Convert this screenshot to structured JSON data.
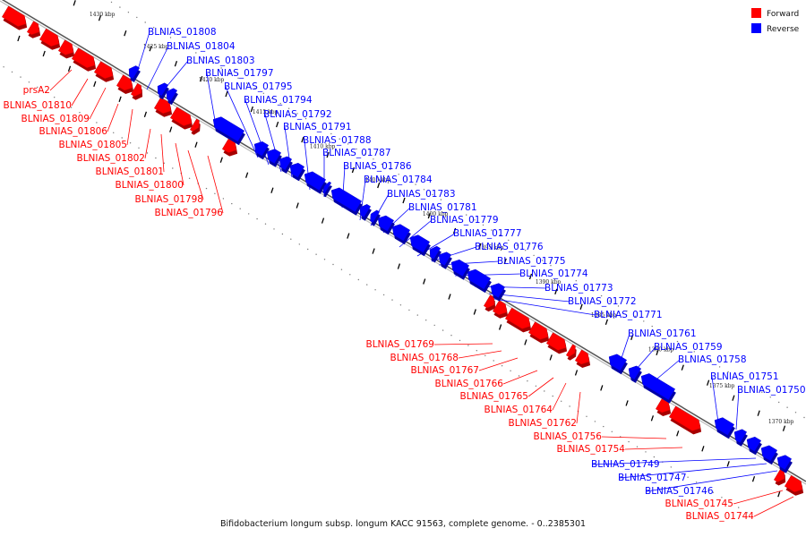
{
  "caption": "Bifidobacterium longum subsp. longum KACC 91563, complete genome. - 0..2385301",
  "legend": [
    {
      "label": "Forward",
      "color": "#ff0000"
    },
    {
      "label": "Reverse",
      "color": "#0000ff"
    }
  ],
  "colors": {
    "forward": "#ff0000",
    "reverse": "#0000ff",
    "axis": "#888888"
  },
  "ticks": [
    "1430 kbp",
    "1425 kbp",
    "1420 kbp",
    "1415 kbp",
    "1410 kbp",
    "1405 kbp",
    "1400 kbp",
    "1395 kbp",
    "1390 kbp",
    "1385 kbp",
    "1380 kbp",
    "1375 kbp",
    "1370 kbp"
  ],
  "forward_labels": [
    "prsA2",
    "BLNIAS_01810",
    "BLNIAS_01809",
    "BLNIAS_01806",
    "BLNIAS_01805",
    "BLNIAS_01802",
    "BLNIAS_01801",
    "BLNIAS_01800",
    "BLNIAS_01798",
    "BLNIAS_01796",
    "BLNIAS_01769",
    "BLNIAS_01768",
    "BLNIAS_01767",
    "BLNIAS_01766",
    "BLNIAS_01765",
    "BLNIAS_01764",
    "BLNIAS_01762",
    "BLNIAS_01756",
    "BLNIAS_01754",
    "BLNIAS_01745",
    "BLNIAS_01744"
  ],
  "reverse_labels": [
    "BLNIAS_01808",
    "BLNIAS_01804",
    "BLNIAS_01803",
    "BLNIAS_01797",
    "BLNIAS_01795",
    "BLNIAS_01794",
    "BLNIAS_01792",
    "BLNIAS_01791",
    "BLNIAS_01788",
    "BLNIAS_01787",
    "BLNIAS_01786",
    "BLNIAS_01784",
    "BLNIAS_01783",
    "BLNIAS_01781",
    "BLNIAS_01779",
    "BLNIAS_01777",
    "BLNIAS_01776",
    "BLNIAS_01775",
    "BLNIAS_01774",
    "BLNIAS_01773",
    "BLNIAS_01772",
    "BLNIAS_01771",
    "BLNIAS_01761",
    "BLNIAS_01759",
    "BLNIAS_01758",
    "BLNIAS_01751",
    "BLNIAS_01750",
    "BLNIAS_01749",
    "BLNIAS_01747",
    "BLNIAS_01746"
  ]
}
